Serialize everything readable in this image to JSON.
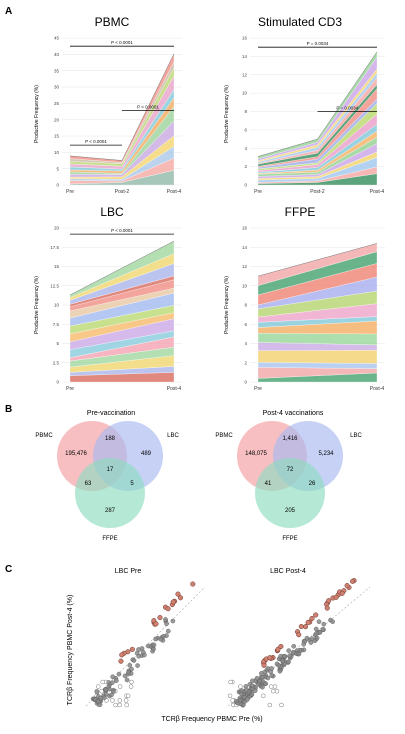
{
  "panel_labels": {
    "a": "A",
    "b": "B",
    "c": "C"
  },
  "panel_a": {
    "ylabel": "Productive Frequency (%)",
    "charts": [
      {
        "title": "PBMC",
        "type": "area",
        "x": [
          "Pre",
          "Post-2",
          "Post-4"
        ],
        "ylim": [
          0,
          45
        ],
        "yticks": [
          "0",
          "5",
          "10",
          "15",
          "20",
          "25",
          "30",
          "35",
          "40",
          "45"
        ],
        "totals": [
          8.9,
          7.5,
          40.2
        ],
        "layers": 12,
        "colors": [
          "#8fb7a8",
          "#f6a6a0",
          "#a8c7e8",
          "#f3d36c",
          "#c7a6e0",
          "#9ad29a",
          "#f2a65a",
          "#7fc8d8",
          "#e8a0c8",
          "#b7d56b",
          "#c9b7a0",
          "#f08a80"
        ],
        "annotations": [
          {
            "label": "P < 0.0001",
            "from": 0,
            "to": 2,
            "value": 42.5
          },
          {
            "label": "P < 0.0001",
            "from": 1,
            "to": 2,
            "value": 22.8
          },
          {
            "label": "P < 0.0001",
            "from": 0,
            "to": 1,
            "value": 12.2
          }
        ]
      },
      {
        "title": "Stimulated CD3",
        "type": "area",
        "x": [
          "Pre",
          "Post-2",
          "Post-4"
        ],
        "ylim": [
          0,
          16
        ],
        "yticks": [
          "0",
          "2",
          "4",
          "6",
          "8",
          "10",
          "12",
          "14",
          "16"
        ],
        "totals": [
          3.1,
          5.0,
          14.5
        ],
        "layers": 18,
        "colors": [
          "#2e8b57",
          "#f4a3a0",
          "#9ec5ee",
          "#f1d26a",
          "#c8a2e8",
          "#8fd08f",
          "#f5b061",
          "#7cc7d9",
          "#e99ac6",
          "#b8d769",
          "#9aa9e8",
          "#f08a80"
        ],
        "annotations": [
          {
            "label": "P = 0.0034",
            "from": 0,
            "to": 2,
            "value": 15.0
          },
          {
            "label": "P = 0.0034",
            "from": 1,
            "to": 2,
            "value": 8.0
          }
        ]
      },
      {
        "title": "LBC",
        "type": "area",
        "x": [
          "Pre",
          "Post-4"
        ],
        "ylim": [
          0,
          20
        ],
        "yticks": [
          "0",
          "2.5",
          "5",
          "7.5",
          "10",
          "12.5",
          "15",
          "17.5",
          "20"
        ],
        "totals": [
          11.3,
          18.3
        ],
        "layers": 16,
        "colors": [
          "#d9685a",
          "#a7b4ea",
          "#f0d56b",
          "#9ed69e",
          "#f4a0b0",
          "#85c9dc",
          "#c9a7e6",
          "#f6b868",
          "#b9d96e",
          "#9fb8f0",
          "#e8c6a0",
          "#f08a80"
        ],
        "annotations": [
          {
            "label": "P < 0.0001",
            "from": 0,
            "to": 1,
            "value": 19.2
          }
        ]
      },
      {
        "title": "FFPE",
        "type": "area",
        "x": [
          "Pre",
          "Post-4"
        ],
        "ylim": [
          0,
          16
        ],
        "yticks": [
          "0",
          "2",
          "4",
          "6",
          "8",
          "10",
          "12",
          "14",
          "16"
        ],
        "totals": [
          11.0,
          14.4
        ],
        "layers": 14,
        "colors": [
          "#3f9f6a",
          "#f2a4a4",
          "#a5c3ee",
          "#f2d06c",
          "#c9a8e4",
          "#96d596",
          "#f4ac5e",
          "#7fc6d8",
          "#eda2c8",
          "#b3d46c",
          "#a4abee",
          "#ee7f70"
        ],
        "annotations": []
      }
    ]
  },
  "panel_b": {
    "venns": [
      {
        "title": "Pre-vaccination",
        "sets": [
          "PBMC",
          "LBC",
          "FFPE"
        ],
        "counts": {
          "pbmc_only": "195,476",
          "lbc_only": "489",
          "ffpe_only": "287",
          "pbmc_lbc": "188",
          "pbmc_ffpe": "63",
          "lbc_ffpe": "5",
          "all": "17"
        }
      },
      {
        "title": "Post-4 vaccinations",
        "sets": [
          "PBMC",
          "LBC",
          "FFPE"
        ],
        "counts": {
          "pbmc_only": "148,075",
          "lbc_only": "5,234",
          "ffpe_only": "205",
          "pbmc_lbc": "1,416",
          "pbmc_ffpe": "41",
          "lbc_ffpe": "26",
          "all": "72"
        }
      }
    ],
    "colors": {
      "pbmc": "#f4a9ad",
      "lbc": "#a7b8f0",
      "ffpe": "#8fdcc0"
    }
  },
  "panel_c": {
    "ylabel": "TCRβ Frequency PBMC Post-4 (%)",
    "xlabel": "TCRβ Frequency PBMC Pre (%)",
    "plots": [
      {
        "title": "LBC Pre",
        "type": "scatter"
      },
      {
        "title": "LBC Post-4",
        "type": "scatter"
      }
    ],
    "colors": {
      "highlight": "#d08070",
      "grey": "#8a8a8a",
      "open": "#ffffff"
    }
  }
}
